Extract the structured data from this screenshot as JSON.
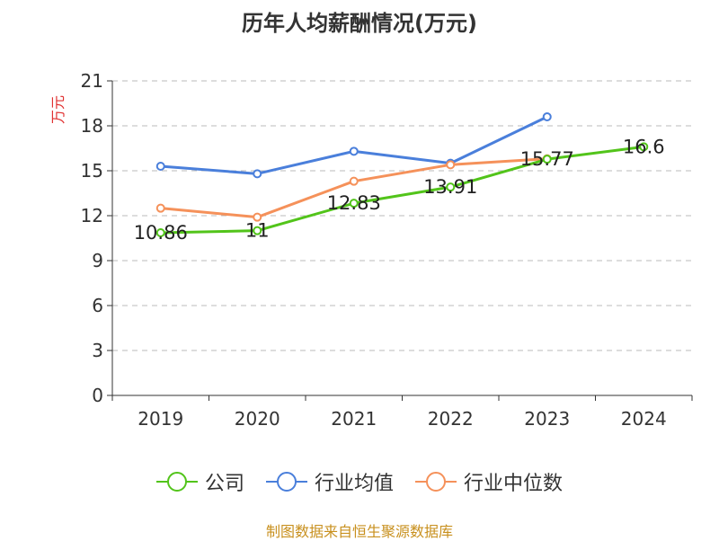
{
  "chart_data": {
    "type": "line",
    "title": "历年人均薪酬情况(万元)",
    "ylabel": "万元",
    "xlabel": "",
    "categories": [
      "2019",
      "2020",
      "2021",
      "2022",
      "2023",
      "2024"
    ],
    "ylim": [
      0,
      21
    ],
    "yticks": [
      0,
      3,
      6,
      9,
      12,
      15,
      18,
      21
    ],
    "grid": true,
    "legend_position": "bottom",
    "series": [
      {
        "name": "公司",
        "color": "#52c41a",
        "values": [
          10.86,
          11,
          12.83,
          13.91,
          15.77,
          16.6
        ],
        "labels": [
          "10.86",
          "11",
          "12.83",
          "13.91",
          "15.77",
          "16.6"
        ]
      },
      {
        "name": "行业均值",
        "color": "#4a7fdb",
        "values": [
          15.3,
          14.8,
          16.3,
          15.5,
          18.6,
          null
        ]
      },
      {
        "name": "行业中位数",
        "color": "#f5915a",
        "values": [
          12.5,
          11.9,
          14.3,
          15.4,
          15.8,
          null
        ]
      }
    ]
  },
  "footer": {
    "source": "制图数据来自恒生聚源数据库",
    "source_color": "#c8901e"
  },
  "colors": {
    "axis": "#333333",
    "grid": "#bbbbbb",
    "ylabel": "#e03030"
  }
}
